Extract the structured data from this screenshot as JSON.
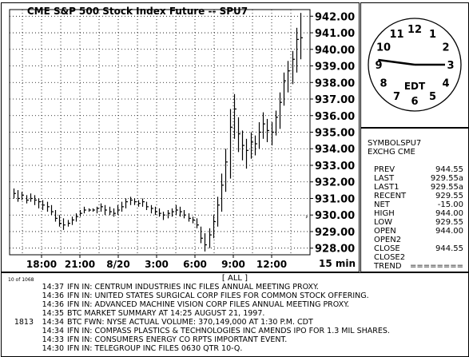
{
  "chart": {
    "title": "CME  S&P  500  Stock  Index  Future  --  SPU7",
    "interval": "15  min"
  },
  "chart_data": {
    "type": "bar",
    "title": "CME  S&P  500  Stock  Index  Future  --  SPU7",
    "xlabel": "",
    "ylabel": "",
    "ylim": [
      927.6,
      942.4
    ],
    "y_ticks": [
      "942.00",
      "941.00",
      "940.00",
      "939.00",
      "938.00",
      "937.00",
      "936.00",
      "935.00",
      "934.00",
      "933.00",
      "932.00",
      "931.00",
      "930.00",
      "929.00",
      "928.00"
    ],
    "x_ticks": [
      "18:00",
      "21:00",
      "8/20",
      "3:00",
      "6:00",
      "9:00",
      "12:00"
    ],
    "grid": true,
    "bar_style": "high-low-close",
    "bars": [
      {
        "h": 931.6,
        "l": 931.0,
        "c": 931.3
      },
      {
        "h": 931.5,
        "l": 930.8,
        "c": 931.0
      },
      {
        "h": 931.4,
        "l": 930.9,
        "c": 931.2
      },
      {
        "h": 931.2,
        "l": 930.7,
        "c": 930.9
      },
      {
        "h": 931.3,
        "l": 930.8,
        "c": 931.0
      },
      {
        "h": 931.2,
        "l": 930.6,
        "c": 930.9
      },
      {
        "h": 931.0,
        "l": 930.4,
        "c": 930.8
      },
      {
        "h": 930.9,
        "l": 930.3,
        "c": 930.6
      },
      {
        "h": 930.8,
        "l": 930.2,
        "c": 930.5
      },
      {
        "h": 930.6,
        "l": 930.0,
        "c": 930.2
      },
      {
        "h": 930.3,
        "l": 929.6,
        "c": 929.8
      },
      {
        "h": 930.0,
        "l": 929.3,
        "c": 929.5
      },
      {
        "h": 929.8,
        "l": 929.1,
        "c": 929.4
      },
      {
        "h": 929.7,
        "l": 929.3,
        "c": 929.5
      },
      {
        "h": 929.9,
        "l": 929.4,
        "c": 929.7
      },
      {
        "h": 930.1,
        "l": 929.6,
        "c": 929.9
      },
      {
        "h": 930.3,
        "l": 929.9,
        "c": 930.1
      },
      {
        "h": 930.5,
        "l": 930.1,
        "c": 930.3
      },
      {
        "h": 930.4,
        "l": 930.2,
        "c": 930.3
      },
      {
        "h": 930.4,
        "l": 930.2,
        "c": 930.3
      },
      {
        "h": 930.5,
        "l": 930.1,
        "c": 930.4
      },
      {
        "h": 930.7,
        "l": 930.2,
        "c": 930.5
      },
      {
        "h": 930.6,
        "l": 930.0,
        "c": 930.3
      },
      {
        "h": 930.5,
        "l": 930.0,
        "c": 930.2
      },
      {
        "h": 930.4,
        "l": 929.9,
        "c": 930.1
      },
      {
        "h": 930.6,
        "l": 930.0,
        "c": 930.3
      },
      {
        "h": 930.8,
        "l": 930.2,
        "c": 930.5
      },
      {
        "h": 931.0,
        "l": 930.4,
        "c": 930.8
      },
      {
        "h": 931.1,
        "l": 930.6,
        "c": 930.9
      },
      {
        "h": 931.0,
        "l": 930.6,
        "c": 930.8
      },
      {
        "h": 930.9,
        "l": 930.5,
        "c": 930.7
      },
      {
        "h": 931.0,
        "l": 930.5,
        "c": 930.8
      },
      {
        "h": 930.8,
        "l": 930.3,
        "c": 930.5
      },
      {
        "h": 930.6,
        "l": 930.1,
        "c": 930.4
      },
      {
        "h": 930.5,
        "l": 930.0,
        "c": 930.2
      },
      {
        "h": 930.4,
        "l": 929.9,
        "c": 930.1
      },
      {
        "h": 930.2,
        "l": 929.7,
        "c": 930.0
      },
      {
        "h": 930.3,
        "l": 929.8,
        "c": 930.1
      },
      {
        "h": 930.4,
        "l": 929.9,
        "c": 930.2
      },
      {
        "h": 930.6,
        "l": 930.0,
        "c": 930.3
      },
      {
        "h": 930.5,
        "l": 929.9,
        "c": 930.2
      },
      {
        "h": 930.3,
        "l": 929.8,
        "c": 930.0
      },
      {
        "h": 930.1,
        "l": 929.6,
        "c": 929.8
      },
      {
        "h": 929.9,
        "l": 929.5,
        "c": 929.7
      },
      {
        "h": 929.8,
        "l": 929.2,
        "c": 929.4
      },
      {
        "h": 929.3,
        "l": 928.3,
        "c": 928.6
      },
      {
        "h": 928.9,
        "l": 927.8,
        "c": 928.2
      },
      {
        "h": 929.2,
        "l": 928.0,
        "c": 928.8
      },
      {
        "h": 930.0,
        "l": 928.6,
        "c": 929.6
      },
      {
        "h": 931.1,
        "l": 929.3,
        "c": 930.6
      },
      {
        "h": 932.5,
        "l": 930.2,
        "c": 931.8
      },
      {
        "h": 934.0,
        "l": 931.4,
        "c": 933.2
      },
      {
        "h": 936.4,
        "l": 932.2,
        "c": 935.3
      },
      {
        "h": 937.3,
        "l": 934.6,
        "c": 936.4
      },
      {
        "h": 935.9,
        "l": 933.8,
        "c": 934.9
      },
      {
        "h": 935.1,
        "l": 933.3,
        "c": 934.2
      },
      {
        "h": 934.6,
        "l": 932.8,
        "c": 933.9
      },
      {
        "h": 935.0,
        "l": 933.4,
        "c": 934.4
      },
      {
        "h": 934.8,
        "l": 933.6,
        "c": 934.3
      },
      {
        "h": 935.6,
        "l": 934.0,
        "c": 935.0
      },
      {
        "h": 936.2,
        "l": 934.6,
        "c": 935.5
      },
      {
        "h": 935.8,
        "l": 934.4,
        "c": 935.1
      },
      {
        "h": 935.6,
        "l": 934.2,
        "c": 935.0
      },
      {
        "h": 936.3,
        "l": 934.8,
        "c": 935.9
      },
      {
        "h": 937.4,
        "l": 935.2,
        "c": 936.8
      },
      {
        "h": 938.6,
        "l": 936.6,
        "c": 938.1
      },
      {
        "h": 939.3,
        "l": 937.4,
        "c": 938.7
      },
      {
        "h": 939.9,
        "l": 937.9,
        "c": 939.4
      },
      {
        "h": 941.3,
        "l": 938.6,
        "c": 940.6
      },
      {
        "h": 942.2,
        "l": 939.4,
        "c": 940.7
      }
    ]
  },
  "clock": {
    "zone": "EDT",
    "numbers": [
      "12",
      "1",
      "2",
      "3",
      "4",
      "5",
      "6",
      "7",
      "8",
      "9",
      "10",
      "11"
    ],
    "hour": 9,
    "minute": 15
  },
  "quote": {
    "symbol": "SYMBOLSPU7",
    "exchange": "EXCHG  CME",
    "rows": [
      {
        "label": "PREV",
        "value": "944.55"
      },
      {
        "label": "LAST",
        "value": "929.55a"
      },
      {
        "label": "LAST1",
        "value": "929.55a"
      },
      {
        "label": "RECENT",
        "value": "929.55"
      },
      {
        "label": "NET",
        "value": "-15.00"
      },
      {
        "label": "HIGH",
        "value": "944.00"
      },
      {
        "label": "LOW",
        "value": "929.55"
      },
      {
        "label": "OPEN",
        "value": "944.00"
      },
      {
        "label": "OPEN2",
        "value": ""
      },
      {
        "label": "CLOSE",
        "value": "944.55"
      },
      {
        "label": "CLOSE2",
        "value": ""
      },
      {
        "label": "TREND",
        "value": "========"
      }
    ]
  },
  "news": {
    "header": "[ ALL ]",
    "count": "10 of 1068",
    "items": [
      {
        "code": "",
        "time": "14:37",
        "text": "IFN IN:  CENTRUM INDUSTRIES INC FILES ANNUAL MEETING PROXY."
      },
      {
        "code": "",
        "time": "14:36",
        "text": "IFN IN:  UNITED STATES SURGICAL CORP FILES FOR COMMON STOCK OFFERING."
      },
      {
        "code": "",
        "time": "14:36",
        "text": "IFN IN:  ADVANCED MACHINE VISION CORP FILES ANNUAL MEETING PROXY."
      },
      {
        "code": "",
        "time": "14:35",
        "text": "BTC MARKET SUMMARY AT 14:25 AUGUST 21, 1997."
      },
      {
        "code": "1813",
        "time": "14:34",
        "text": "BTC FWN: NYSE ACTUAL VOLUME: 370,149,000 AT 1:30 P.M. CDT"
      },
      {
        "code": "",
        "time": "14:34",
        "text": "IFN IN:  COMPASS PLASTICS & TECHNOLOGIES INC AMENDS IPO FOR 1.3 MIL SHARES."
      },
      {
        "code": "",
        "time": "14:33",
        "text": "IFN IN:  CONSUMERS ENERGY CO RPTS IMPORTANT EVENT."
      },
      {
        "code": "",
        "time": "14:30",
        "text": "IFN IN:  TELEGROUP INC FILES 0630 QTR 10-Q."
      }
    ]
  }
}
